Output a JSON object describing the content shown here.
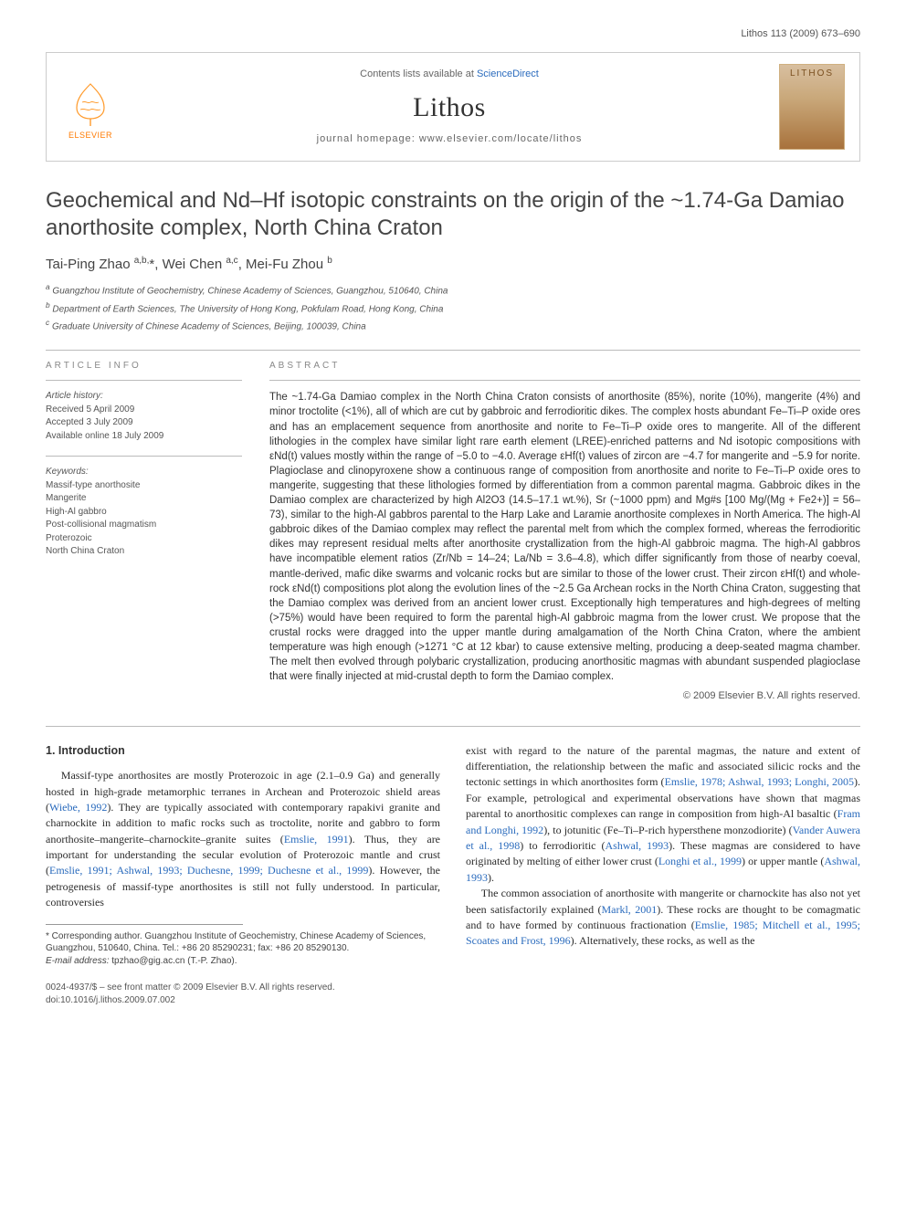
{
  "running_header": "Lithos 113 (2009) 673–690",
  "banner": {
    "contents_line_prefix": "Contents lists available at ",
    "contents_link": "ScienceDirect",
    "journal_name": "Lithos",
    "homepage_prefix": "journal homepage: ",
    "homepage_url": "www.elsevier.com/locate/lithos",
    "publisher_logo_text": "ELSEVIER",
    "cover_text": "LITHOS"
  },
  "title": "Geochemical and Nd–Hf isotopic constraints on the origin of the ~1.74-Ga Damiao anorthosite complex, North China Craton",
  "authors_html": "Tai-Ping Zhao <sup>a,b,</sup>*, Wei Chen <sup>a,c</sup>, Mei-Fu Zhou <sup>b</sup>",
  "affiliations": {
    "a": "Guangzhou Institute of Geochemistry, Chinese Academy of Sciences, Guangzhou, 510640, China",
    "b": "Department of Earth Sciences, The University of Hong Kong, Pokfulam Road, Hong Kong, China",
    "c": "Graduate University of Chinese Academy of Sciences, Beijing, 100039, China"
  },
  "article_info": {
    "heading": "ARTICLE INFO",
    "history_head": "Article history:",
    "received": "Received 5 April 2009",
    "accepted": "Accepted 3 July 2009",
    "online": "Available online 18 July 2009",
    "keywords_head": "Keywords:",
    "keywords": [
      "Massif-type anorthosite",
      "Mangerite",
      "High-Al gabbro",
      "Post-collisional magmatism",
      "Proterozoic",
      "North China Craton"
    ]
  },
  "abstract": {
    "heading": "ABSTRACT",
    "text": "The ~1.74-Ga Damiao complex in the North China Craton consists of anorthosite (85%), norite (10%), mangerite (4%) and minor troctolite (<1%), all of which are cut by gabbroic and ferrodioritic dikes. The complex hosts abundant Fe–Ti–P oxide ores and has an emplacement sequence from anorthosite and norite to Fe–Ti–P oxide ores to mangerite. All of the different lithologies in the complex have similar light rare earth element (LREE)-enriched patterns and Nd isotopic compositions with εNd(t) values mostly within the range of −5.0 to −4.0. Average εHf(t) values of zircon are −4.7 for mangerite and −5.9 for norite. Plagioclase and clinopyroxene show a continuous range of composition from anorthosite and norite to Fe–Ti–P oxide ores to mangerite, suggesting that these lithologies formed by differentiation from a common parental magma. Gabbroic dikes in the Damiao complex are characterized by high Al2O3 (14.5–17.1 wt.%), Sr (~1000 ppm) and Mg#s [100 Mg/(Mg + Fe2+)] = 56–73), similar to the high-Al gabbros parental to the Harp Lake and Laramie anorthosite complexes in North America. The high-Al gabbroic dikes of the Damiao complex may reflect the parental melt from which the complex formed, whereas the ferrodioritic dikes may represent residual melts after anorthosite crystallization from the high-Al gabbroic magma. The high-Al gabbros have incompatible element ratios (Zr/Nb = 14–24; La/Nb = 3.6–4.8), which differ significantly from those of nearby coeval, mantle-derived, mafic dike swarms and volcanic rocks but are similar to those of the lower crust. Their zircon εHf(t) and whole-rock εNd(t) compositions plot along the evolution lines of the ~2.5 Ga Archean rocks in the North China Craton, suggesting that the Damiao complex was derived from an ancient lower crust. Exceptionally high temperatures and high-degrees of melting (>75%) would have been required to form the parental high-Al gabbroic magma from the lower crust. We propose that the crustal rocks were dragged into the upper mantle during amalgamation of the North China Craton, where the ambient temperature was high enough (>1271 °C at 12 kbar) to cause extensive melting, producing a deep-seated magma chamber. The melt then evolved through polybaric crystallization, producing anorthositic magmas with abundant suspended plagioclase that were finally injected at mid-crustal depth to form the Damiao complex.",
    "copyright": "© 2009 Elsevier B.V. All rights reserved."
  },
  "intro": {
    "heading": "1. Introduction",
    "col1_p1_pre": "Massif-type anorthosites are mostly Proterozoic in age (2.1–0.9 Ga) and generally hosted in high-grade metamorphic terranes in Archean and Proterozoic shield areas (",
    "col1_p1_cite1": "Wiebe, 1992",
    "col1_p1_mid1": "). They are typically associated with contemporary rapakivi granite and charnockite in addition to mafic rocks such as troctolite, norite and gabbro to form anorthosite–mangerite–charnockite–granite suites (",
    "col1_p1_cite2": "Emslie, 1991",
    "col1_p1_mid2": "). Thus, they are important for understanding the secular evolution of Proterozoic mantle and crust (",
    "col1_p1_cite3": "Emslie, 1991; Ashwal, 1993; Duchesne, 1999; Duchesne et al., 1999",
    "col1_p1_post": "). However, the petrogenesis of massif-type anorthosites is still not fully understood. In particular, controversies",
    "col2_p1_pre": "exist with regard to the nature of the parental magmas, the nature and extent of differentiation, the relationship between the mafic and associated silicic rocks and the tectonic settings in which anorthosites form (",
    "col2_p1_cite1": "Emslie, 1978; Ashwal, 1993; Longhi, 2005",
    "col2_p1_mid1": "). For example, petrological and experimental observations have shown that magmas parental to anorthositic complexes can range in composition from high-Al basaltic (",
    "col2_p1_cite2": "Fram and Longhi, 1992",
    "col2_p1_mid2": "), to jotunitic (Fe–Ti–P-rich hypersthene monzodiorite) (",
    "col2_p1_cite3": "Vander Auwera et al., 1998",
    "col2_p1_mid3": ") to ferrodioritic (",
    "col2_p1_cite4": "Ashwal, 1993",
    "col2_p1_mid4": "). These magmas are considered to have originated by melting of either lower crust (",
    "col2_p1_cite5": "Longhi et al., 1999",
    "col2_p1_mid5": ") or upper mantle (",
    "col2_p1_cite6": "Ashwal, 1993",
    "col2_p1_post": ").",
    "col2_p2_pre": "The common association of anorthosite with mangerite or charnockite has also not yet been satisfactorily explained (",
    "col2_p2_cite1": "Markl, 2001",
    "col2_p2_mid1": "). These rocks are thought to be comagmatic and to have formed by continuous fractionation (",
    "col2_p2_cite2": "Emslie, 1985; Mitchell et al., 1995; Scoates and Frost, 1996",
    "col2_p2_post": "). Alternatively, these rocks, as well as the"
  },
  "footnote": {
    "corresponding": "* Corresponding author. Guangzhou Institute of Geochemistry, Chinese Academy of Sciences, Guangzhou, 510640, China. Tel.: +86 20 85290231; fax: +86 20 85290130.",
    "email_label": "E-mail address:",
    "email": "tpzhao@gig.ac.cn",
    "email_suffix": "(T.-P. Zhao)."
  },
  "bottom": {
    "issn_line": "0024-4937/$ – see front matter © 2009 Elsevier B.V. All rights reserved.",
    "doi_line": "doi:10.1016/j.lithos.2009.07.002"
  },
  "colors": {
    "link": "#2a6bbd",
    "logo_orange": "#ff7a00",
    "rule": "#bbbbbb",
    "text": "#333333"
  }
}
